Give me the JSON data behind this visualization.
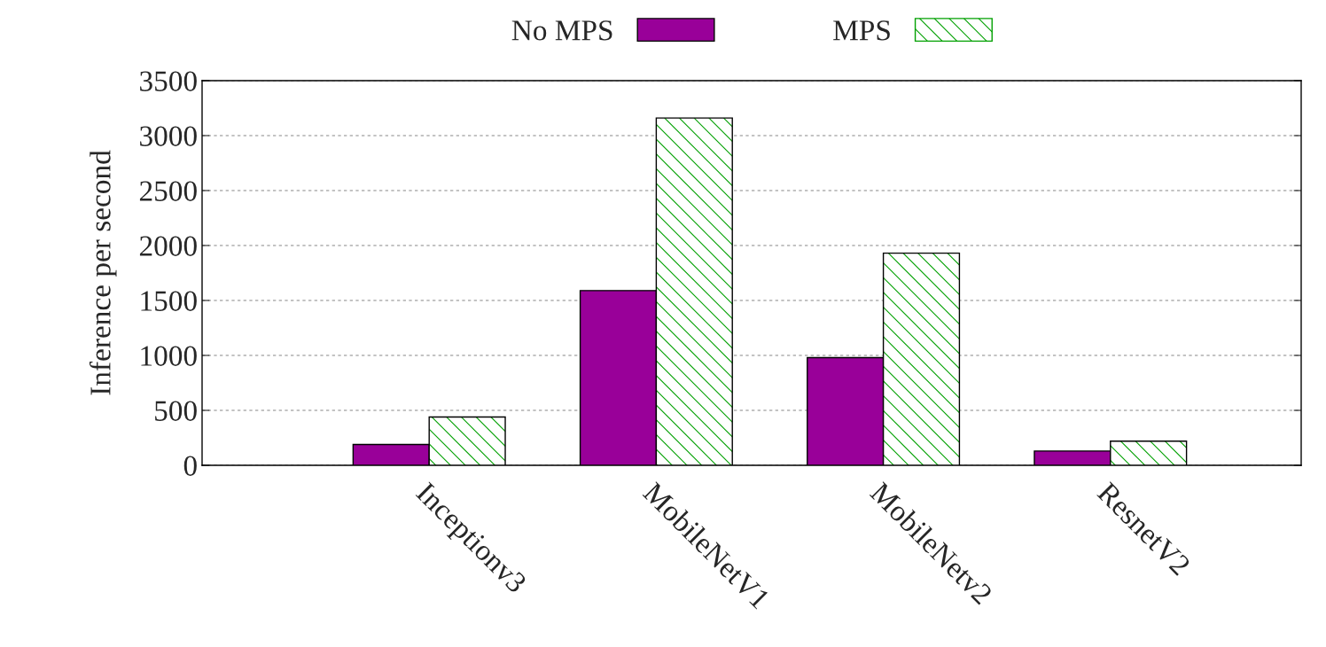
{
  "chart_data": {
    "type": "bar",
    "ylabel": "Inference per second",
    "categories": [
      "Inceptionv3",
      "MobileNetV1",
      "MobileNetv2",
      "ResnetV2"
    ],
    "series": [
      {
        "name": "No MPS",
        "color": "#990099",
        "values": [
          190,
          1590,
          980,
          130
        ]
      },
      {
        "name": "MPS",
        "color": "#00a000",
        "values": [
          440,
          3160,
          1930,
          220
        ]
      }
    ],
    "ylim": [
      0,
      3500
    ],
    "yticks": [
      0,
      500,
      1000,
      1500,
      2000,
      2500,
      3000,
      3500
    ],
    "grid": "y",
    "legend": "top"
  }
}
